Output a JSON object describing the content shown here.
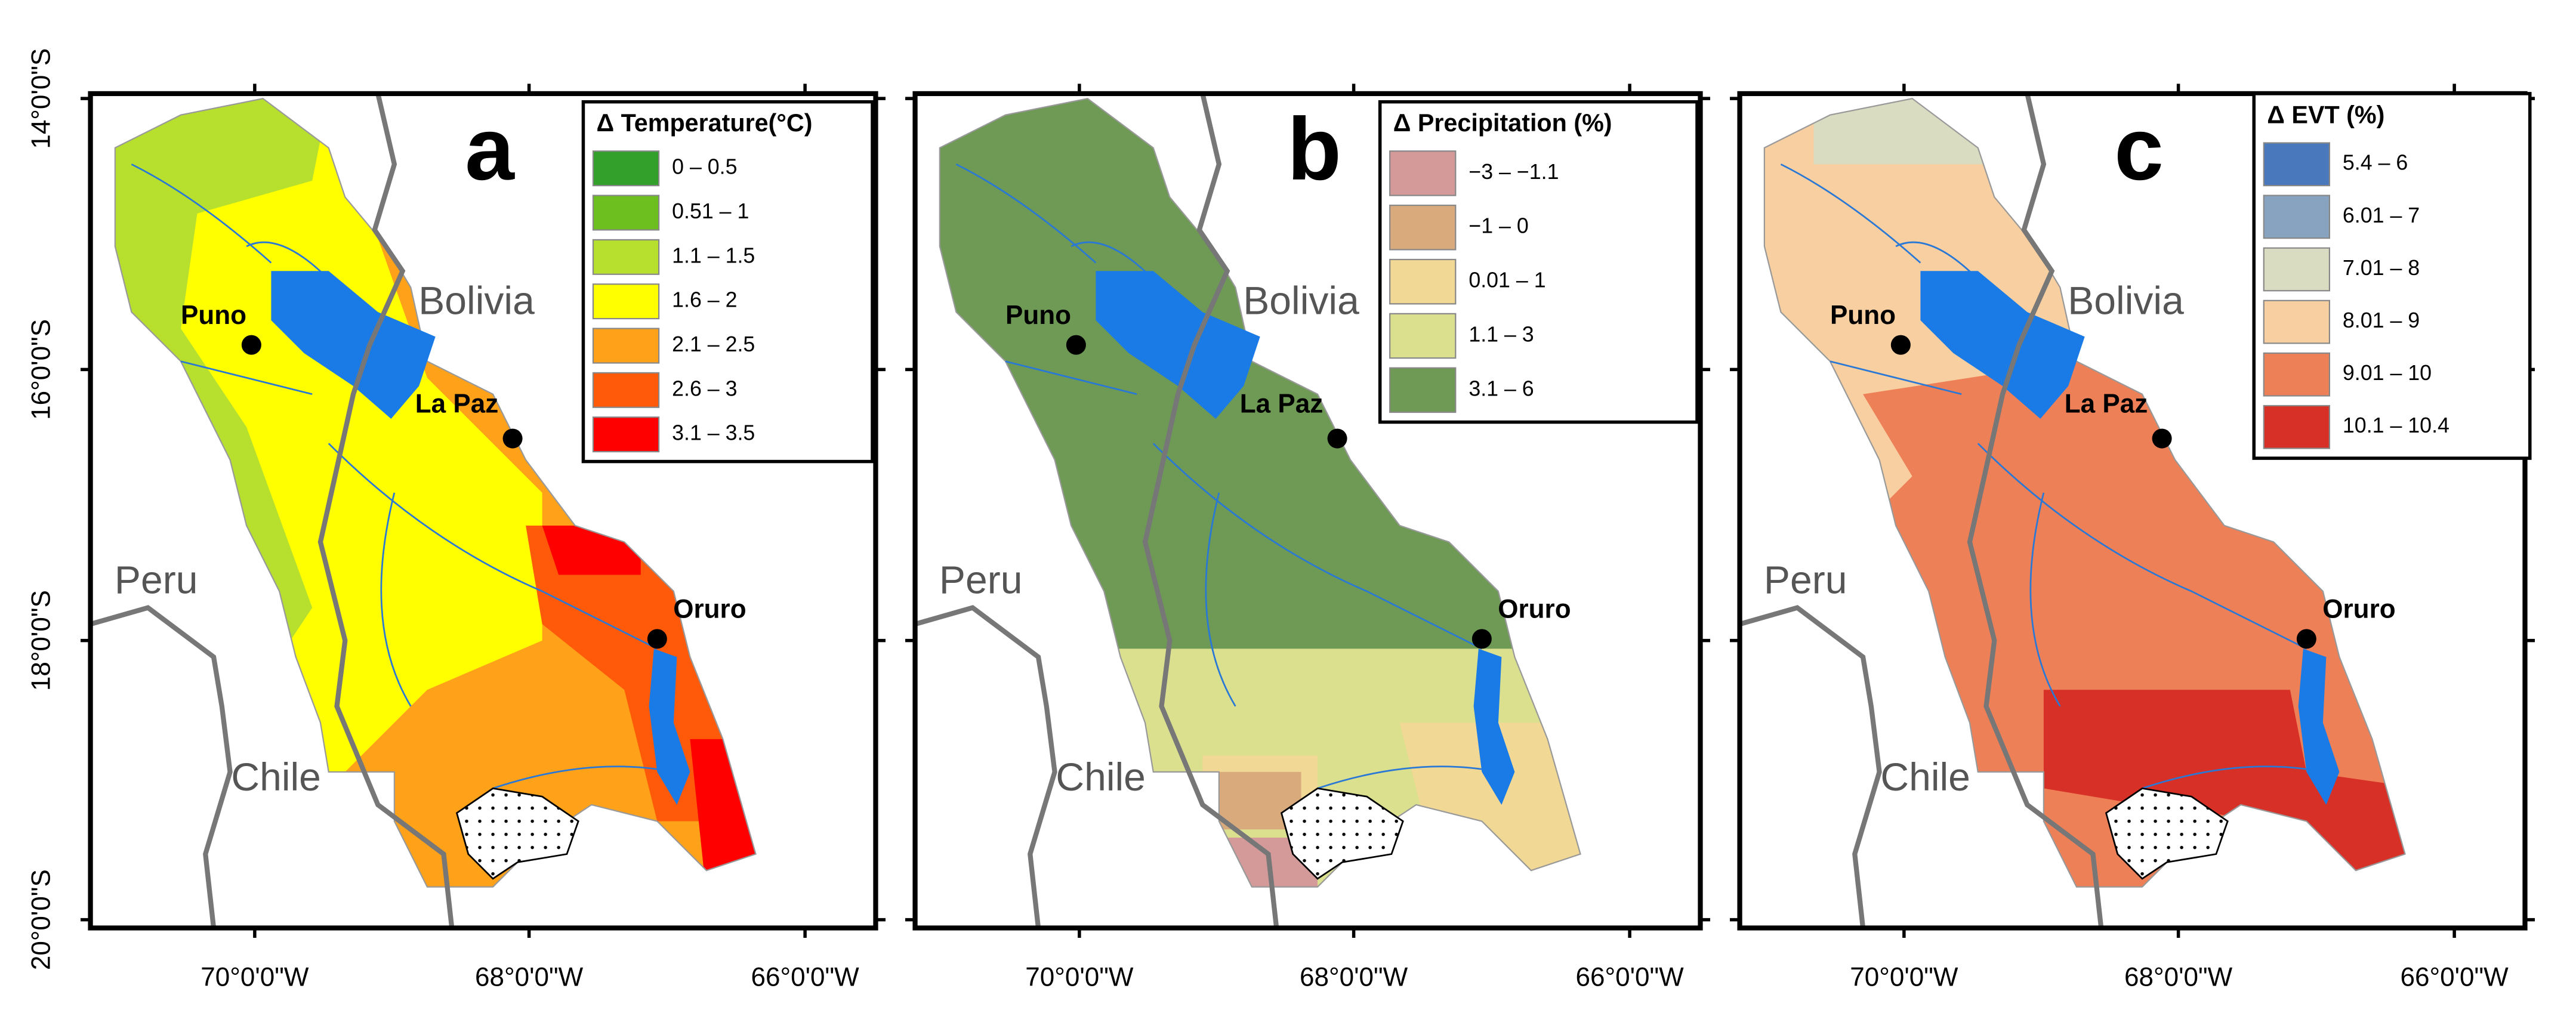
{
  "panels": [
    {
      "letter": "a",
      "legend": {
        "title": "Δ Temperature(°C)",
        "items": [
          {
            "label": "0 – 0.5",
            "color": "#33a02c"
          },
          {
            "label": "0.51 – 1",
            "color": "#6cbf1f"
          },
          {
            "label": "1.1 – 1.5",
            "color": "#b6e02d"
          },
          {
            "label": "1.6 – 2",
            "color": "#ffff00"
          },
          {
            "label": "2.1 – 2.5",
            "color": "#ffa21a"
          },
          {
            "label": "2.6 – 3",
            "color": "#ff5a0a"
          },
          {
            "label": "3.1 – 3.5",
            "color": "#ff0000"
          }
        ]
      }
    },
    {
      "letter": "b",
      "legend": {
        "title": "Δ Precipitation (%)",
        "items": [
          {
            "label": "−3 – −1.1",
            "color": "#d49a9a"
          },
          {
            "label": "−1 – 0",
            "color": "#d9aa7c"
          },
          {
            "label": "0.01 – 1",
            "color": "#f1d894"
          },
          {
            "label": "1.1 – 3",
            "color": "#dbe08f"
          },
          {
            "label": "3.1 – 6",
            "color": "#6e9a55"
          }
        ]
      }
    },
    {
      "letter": "c",
      "legend": {
        "title": "Δ EVT (%)",
        "items": [
          {
            "label": "5.4 – 6",
            "color": "#4a78bd"
          },
          {
            "label": "6.01 – 7",
            "color": "#87a3c0"
          },
          {
            "label": "7.01 – 8",
            "color": "#d9dcc0"
          },
          {
            "label": "8.01 – 9",
            "color": "#f8cfa0"
          },
          {
            "label": "9.01 – 10",
            "color": "#ee8058"
          },
          {
            "label": "10.1 – 10.4",
            "color": "#d73027"
          }
        ]
      }
    }
  ],
  "countries": [
    "Bolivia",
    "Peru",
    "Chile"
  ],
  "cities": [
    "Puno",
    "La Paz",
    "Oruro"
  ],
  "lat_ticks": [
    "14°0'0\"S",
    "16°0'0\"S",
    "18°0'0\"S",
    "20°0'0\"S"
  ],
  "lon_ticks": [
    "70°0'0\"W",
    "68°0'0\"W",
    "66°0'0\"W"
  ]
}
